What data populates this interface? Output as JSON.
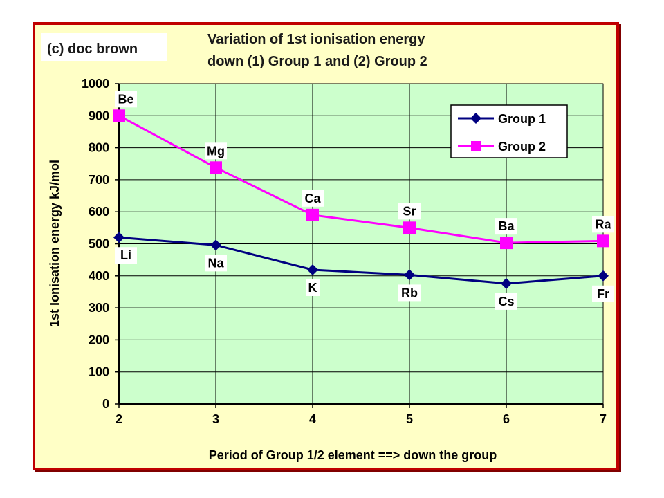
{
  "copyright": "(c) doc brown",
  "chart_data": {
    "type": "line",
    "title_line1": "Variation of 1st ionisation energy",
    "title_line2": "down (1) Group 1 and (2) Group 2",
    "xlabel": "Period of Group 1/2 element ==> down the group",
    "ylabel": "1st Ionisation energy kJ/mol",
    "x": [
      2,
      3,
      4,
      5,
      6,
      7
    ],
    "xlim": [
      2,
      7
    ],
    "ylim": [
      0,
      1000
    ],
    "yticks": [
      0,
      100,
      200,
      300,
      400,
      500,
      600,
      700,
      800,
      900,
      1000
    ],
    "grid": true,
    "legend_position": "top-right",
    "series": [
      {
        "name": "Group 1",
        "color": "#000080",
        "marker": "diamond",
        "values": [
          520,
          496,
          419,
          403,
          376,
          400
        ],
        "labels": [
          "Li",
          "Na",
          "K",
          "Rb",
          "Cs",
          "Fr"
        ]
      },
      {
        "name": "Group 2",
        "color": "#ff00ff",
        "marker": "square",
        "values": [
          900,
          738,
          590,
          550,
          503,
          509
        ],
        "labels": [
          "Be",
          "Mg",
          "Ca",
          "Sr",
          "Ba",
          "Ra"
        ]
      }
    ]
  }
}
